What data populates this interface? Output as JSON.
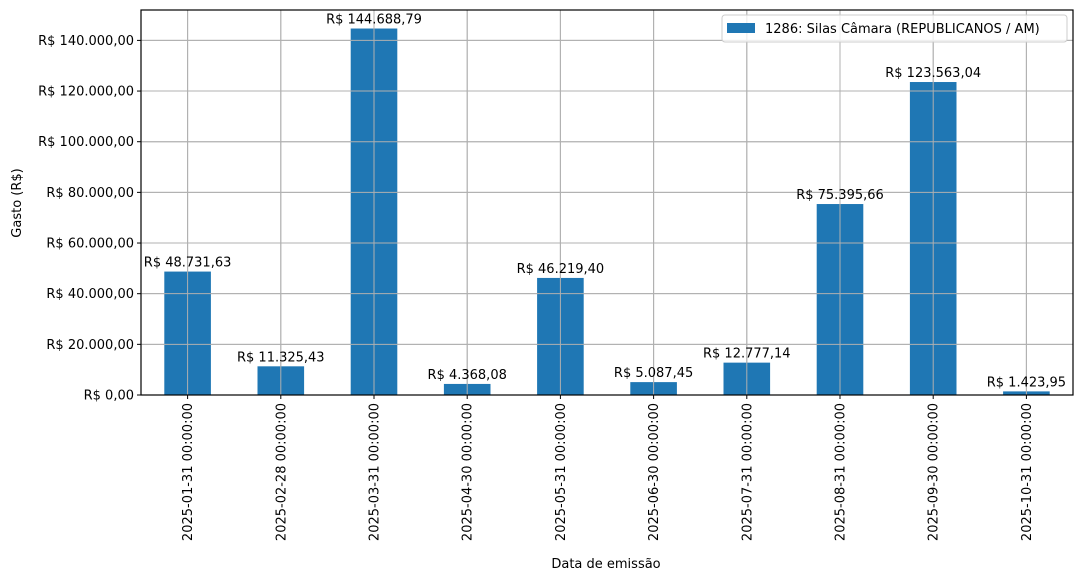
{
  "chart_data": {
    "type": "bar",
    "title": "",
    "xlabel": "Data de emissão",
    "ylabel": "Gasto (R$)",
    "ylim": [
      0,
      152000
    ],
    "grid": true,
    "legend_position": "upper right",
    "categories": [
      "2025-01-31 00:00:00",
      "2025-02-28 00:00:00",
      "2025-03-31 00:00:00",
      "2025-04-30 00:00:00",
      "2025-05-31 00:00:00",
      "2025-06-30 00:00:00",
      "2025-07-31 00:00:00",
      "2025-08-31 00:00:00",
      "2025-09-30 00:00:00",
      "2025-10-31 00:00:00"
    ],
    "series": [
      {
        "name": "1286: Silas Câmara (REPUBLICANOS / AM)",
        "color": "#1f77b4",
        "values": [
          48731.63,
          11325.43,
          144688.79,
          4368.08,
          46219.4,
          5087.45,
          12777.14,
          75395.66,
          123563.04,
          1423.95
        ],
        "labels": [
          "R$ 48.731,63",
          "R$ 11.325,43",
          "R$ 144.688,79",
          "R$ 4.368,08",
          "R$ 46.219,40",
          "R$ 5.087,45",
          "R$ 12.777,14",
          "R$ 75.395,66",
          "R$ 123.563,04",
          "R$ 1.423,95"
        ]
      }
    ],
    "yticks": [
      0,
      20000,
      40000,
      60000,
      80000,
      100000,
      120000,
      140000
    ],
    "ytick_labels": [
      "R$ 0,00",
      "R$ 20.000,00",
      "R$ 40.000,00",
      "R$ 60.000,00",
      "R$ 80.000,00",
      "R$ 100.000,00",
      "R$ 120.000,00",
      "R$ 140.000,00"
    ]
  },
  "colors": {
    "bar": "#1f77b4",
    "grid": "#b0b0b0",
    "axis": "#000000",
    "legend_border": "#cccccc"
  }
}
